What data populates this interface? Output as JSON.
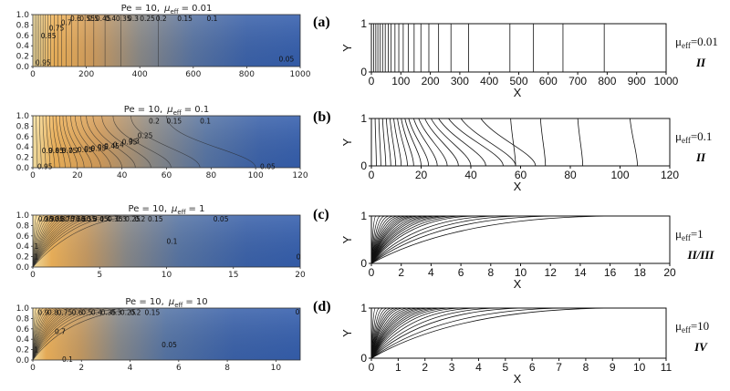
{
  "chart_data": [
    {
      "type": "heatmap",
      "panel": "left-1",
      "title_prefix": "Pe = 10,",
      "title_param": "μ",
      "title_param_sub": "eff",
      "title_value": "= 0.01",
      "xlim": [
        0,
        1000
      ],
      "ylim": [
        0,
        1
      ],
      "x_ticks": [
        0,
        200,
        400,
        600,
        800,
        1000
      ],
      "y_ticks": [
        "0.0",
        "0.2",
        "0.4",
        "0.6",
        "0.8",
        "1.0"
      ],
      "contour_levels": [
        0.95,
        0.9,
        0.85,
        0.8,
        0.75,
        0.7,
        0.65,
        0.6,
        0.55,
        0.5,
        0.45,
        0.4,
        0.35,
        0.3,
        0.25,
        0.2,
        0.15,
        0.1,
        0.05
      ],
      "contour_x_at_top": [
        8,
        15,
        22,
        30,
        38,
        47,
        57,
        67,
        80,
        93,
        108,
        125,
        145,
        168,
        195,
        228,
        270,
        330,
        470
      ],
      "contour_x_at_bottom": [
        8,
        15,
        22,
        30,
        38,
        47,
        57,
        67,
        80,
        93,
        108,
        125,
        145,
        168,
        195,
        228,
        270,
        330,
        470
      ],
      "contour_labels": [
        {
          "text": "0.95",
          "x": 10,
          "y": 0.08
        },
        {
          "text": "0.85",
          "x": 30,
          "y": 0.6
        },
        {
          "text": "0.75",
          "x": 60,
          "y": 0.75
        },
        {
          "text": "0.7",
          "x": 105,
          "y": 0.85
        },
        {
          "text": "0.6",
          "x": 140,
          "y": 0.93
        },
        {
          "text": "0.55",
          "x": 175,
          "y": 0.93
        },
        {
          "text": "0.5",
          "x": 205,
          "y": 0.93
        },
        {
          "text": "0.45",
          "x": 235,
          "y": 0.93
        },
        {
          "text": "0.4",
          "x": 270,
          "y": 0.93
        },
        {
          "text": "0.35",
          "x": 310,
          "y": 0.93
        },
        {
          "text": "0.3",
          "x": 355,
          "y": 0.93
        },
        {
          "text": "0.25",
          "x": 400,
          "y": 0.93
        },
        {
          "text": "0.2",
          "x": 460,
          "y": 0.93
        },
        {
          "text": "0.15",
          "x": 540,
          "y": 0.93
        },
        {
          "text": "0.1",
          "x": 650,
          "y": 0.93
        },
        {
          "text": "0.05",
          "x": 920,
          "y": 0.15
        }
      ]
    },
    {
      "type": "heatmap",
      "panel": "left-2",
      "title_prefix": "Pe = 10,",
      "title_param": "μ",
      "title_param_sub": "eff",
      "title_value": "= 0.1",
      "xlim": [
        0,
        120
      ],
      "ylim": [
        0,
        1
      ],
      "x_ticks": [
        0,
        20,
        40,
        60,
        80,
        100,
        120
      ],
      "y_ticks": [
        "0.0",
        "0.2",
        "0.4",
        "0.6",
        "0.8",
        "1.0"
      ],
      "contour_levels": [
        0.95,
        0.9,
        0.85,
        0.8,
        0.75,
        0.7,
        0.65,
        0.6,
        0.55,
        0.5,
        0.45,
        0.4,
        0.35,
        0.3,
        0.25,
        0.2,
        0.15,
        0.1,
        0.05
      ],
      "contour_x_at_top": [
        1.5,
        3,
        4.5,
        6,
        7.5,
        9,
        10.5,
        12,
        13.5,
        15,
        17,
        19,
        21.5,
        24,
        27,
        31,
        36,
        44,
        60
      ],
      "contour_x_at_bottom": [
        2,
        3.8,
        5.8,
        7.8,
        9.8,
        12,
        14.5,
        17,
        20,
        23,
        26.5,
        30.5,
        35,
        40,
        46,
        53,
        62,
        75,
        100
      ],
      "contour_labels": [
        {
          "text": "0.95",
          "x": 2,
          "y": 0.03
        },
        {
          "text": "0.9",
          "x": 4,
          "y": 0.33
        },
        {
          "text": "0.85",
          "x": 7,
          "y": 0.33
        },
        {
          "text": "0.8",
          "x": 10,
          "y": 0.33
        },
        {
          "text": "0.75",
          "x": 13,
          "y": 0.33
        },
        {
          "text": "0.7",
          "x": 16,
          "y": 0.33
        },
        {
          "text": "0.65",
          "x": 20,
          "y": 0.35
        },
        {
          "text": "0.6",
          "x": 23,
          "y": 0.37
        },
        {
          "text": "0.55",
          "x": 26,
          "y": 0.38
        },
        {
          "text": "0.5",
          "x": 29,
          "y": 0.4
        },
        {
          "text": "0.45",
          "x": 32,
          "y": 0.42
        },
        {
          "text": "0.4",
          "x": 36,
          "y": 0.45
        },
        {
          "text": "0.35",
          "x": 40,
          "y": 0.5
        },
        {
          "text": "0.3",
          "x": 43,
          "y": 0.52
        },
        {
          "text": "0.25",
          "x": 47,
          "y": 0.62
        },
        {
          "text": "0.2",
          "x": 52,
          "y": 0.9
        },
        {
          "text": "0.15",
          "x": 60,
          "y": 0.9
        },
        {
          "text": "0.1",
          "x": 75,
          "y": 0.9
        },
        {
          "text": "0.05",
          "x": 102,
          "y": 0.03
        }
      ]
    },
    {
      "type": "heatmap",
      "panel": "left-3",
      "title_prefix": "Pe = 10,",
      "title_param": "μ",
      "title_param_sub": "eff",
      "title_value": "= 1",
      "xlim": [
        0,
        20
      ],
      "ylim": [
        0,
        1
      ],
      "x_ticks": [
        0,
        5,
        10,
        15,
        20
      ],
      "y_ticks": [
        "0.0",
        "0.2",
        "0.4",
        "0.6",
        "0.8",
        "1.0"
      ],
      "contour_levels": [
        0.95,
        0.9,
        0.85,
        0.8,
        0.75,
        0.7,
        0.65,
        0.6,
        0.55,
        0.5,
        0.45,
        0.4,
        0.35,
        0.3,
        0.25,
        0.2,
        0.15,
        0.1,
        0.05
      ],
      "contour_x_at_top": [
        0.3,
        0.6,
        0.9,
        1.2,
        1.5,
        1.8,
        2.1,
        2.4,
        2.7,
        3.0,
        3.3,
        3.7,
        4.1,
        4.5,
        5.0,
        5.5,
        6.2,
        7.0,
        8.5
      ],
      "contour_x_at_bottom": [
        0.5,
        1.0,
        1.5,
        2.0,
        2.6,
        3.2,
        3.8,
        4.4,
        5.0,
        5.7,
        6.4,
        7.2,
        8.0,
        8.9,
        9.8,
        10.8,
        12.0,
        13.5,
        16.5
      ],
      "contour_labels": [
        {
          "text": "0.95",
          "x": 0.4,
          "y": 0.93
        },
        {
          "text": "0.9",
          "x": 0.8,
          "y": 0.93
        },
        {
          "text": "0.85",
          "x": 1.2,
          "y": 0.93
        },
        {
          "text": "0.8",
          "x": 1.6,
          "y": 0.93
        },
        {
          "text": "0.75",
          "x": 2.0,
          "y": 0.93
        },
        {
          "text": "0.7",
          "x": 2.4,
          "y": 0.93
        },
        {
          "text": "0.65",
          "x": 2.8,
          "y": 0.93
        },
        {
          "text": "0.6",
          "x": 3.2,
          "y": 0.93
        },
        {
          "text": "0.55",
          "x": 3.6,
          "y": 0.93
        },
        {
          "text": "0.5",
          "x": 4.0,
          "y": 0.93
        },
        {
          "text": "0.45",
          "x": 4.5,
          "y": 0.93
        },
        {
          "text": "0.4",
          "x": 5.0,
          "y": 0.93
        },
        {
          "text": "0.35",
          "x": 5.6,
          "y": 0.93
        },
        {
          "text": "0.3",
          "x": 6.2,
          "y": 0.93
        },
        {
          "text": "0.25",
          "x": 6.9,
          "y": 0.93
        },
        {
          "text": "0.2",
          "x": 7.6,
          "y": 0.93
        },
        {
          "text": "0.15",
          "x": 8.6,
          "y": 0.93
        },
        {
          "text": "0.1",
          "x": 10.0,
          "y": 0.5
        },
        {
          "text": "0.05",
          "x": 13.5,
          "y": 0.93
        },
        {
          "text": "1",
          "x": 0.1,
          "y": 0.4
        },
        {
          "text": "1",
          "x": 0.1,
          "y": 0.2
        },
        {
          "text": "0",
          "x": 19.7,
          "y": 0.2
        }
      ]
    },
    {
      "type": "heatmap",
      "panel": "left-4",
      "title_prefix": "Pe = 10,",
      "title_param": "μ",
      "title_param_sub": "eff",
      "title_value": "= 10",
      "xlim": [
        0,
        11
      ],
      "ylim": [
        0,
        1
      ],
      "x_ticks": [
        0,
        2,
        4,
        6,
        8,
        10
      ],
      "y_ticks": [
        "0.0",
        "0.2",
        "0.4",
        "0.6",
        "0.8",
        "1.0"
      ],
      "contour_levels": [
        0.95,
        0.9,
        0.85,
        0.8,
        0.75,
        0.7,
        0.65,
        0.6,
        0.55,
        0.5,
        0.45,
        0.4,
        0.35,
        0.3,
        0.25,
        0.2,
        0.15,
        0.1,
        0.05
      ],
      "contour_x_at_top": [
        0.15,
        0.3,
        0.45,
        0.6,
        0.75,
        0.9,
        1.05,
        1.2,
        1.4,
        1.6,
        1.8,
        2.0,
        2.2,
        2.45,
        2.7,
        3.0,
        3.4,
        4.0,
        5.0
      ],
      "contour_x_at_bottom": [
        0.2,
        0.4,
        0.6,
        0.8,
        1.0,
        1.25,
        1.5,
        1.75,
        2.0,
        2.3,
        2.6,
        2.95,
        3.3,
        3.7,
        4.1,
        4.6,
        5.3,
        6.2,
        7.6
      ],
      "contour_labels": [
        {
          "text": "0.9",
          "x": 0.2,
          "y": 0.92
        },
        {
          "text": "0.8",
          "x": 0.6,
          "y": 0.92
        },
        {
          "text": "0.75",
          "x": 1.0,
          "y": 0.92
        },
        {
          "text": "0.7",
          "x": 0.9,
          "y": 0.55
        },
        {
          "text": "0.6",
          "x": 1.6,
          "y": 0.92
        },
        {
          "text": "0.5",
          "x": 2.0,
          "y": 0.92
        },
        {
          "text": "0.4",
          "x": 2.4,
          "y": 0.92
        },
        {
          "text": "0.35",
          "x": 2.8,
          "y": 0.92
        },
        {
          "text": "0.3",
          "x": 3.2,
          "y": 0.92
        },
        {
          "text": "0.25",
          "x": 3.6,
          "y": 0.92
        },
        {
          "text": "0.2",
          "x": 4.0,
          "y": 0.92
        },
        {
          "text": "0.15",
          "x": 4.6,
          "y": 0.92
        },
        {
          "text": "0.05",
          "x": 5.3,
          "y": 0.3
        },
        {
          "text": "0.1",
          "x": 1.2,
          "y": 0.02
        },
        {
          "text": "1",
          "x": 0.05,
          "y": 0.2
        },
        {
          "text": "0",
          "x": 10.8,
          "y": 0.93
        }
      ]
    },
    {
      "type": "line",
      "panel": "a",
      "panel_label": "(a)",
      "xlabel": "X",
      "ylabel": "Y",
      "xlim": [
        0,
        1000
      ],
      "ylim": [
        0,
        1
      ],
      "x_ticks": [
        0,
        100,
        200,
        300,
        400,
        500,
        600,
        700,
        800,
        900,
        1000
      ],
      "y_ticks": [
        0,
        1
      ],
      "mu_label": "μ",
      "mu_sub": "eff",
      "mu_value": "=0.01",
      "regime": "II",
      "contour_x_at_top": [
        8,
        15,
        22,
        30,
        38,
        47,
        57,
        67,
        80,
        93,
        108,
        125,
        145,
        168,
        195,
        228,
        270,
        330,
        470,
        550,
        650,
        790
      ],
      "contour_x_at_bottom": [
        8,
        15,
        22,
        30,
        38,
        47,
        57,
        67,
        80,
        93,
        108,
        125,
        145,
        168,
        195,
        228,
        270,
        330,
        470,
        550,
        650,
        790
      ]
    },
    {
      "type": "line",
      "panel": "b",
      "panel_label": "(b)",
      "xlabel": "X",
      "ylabel": "Y",
      "xlim": [
        0,
        120
      ],
      "ylim": [
        0,
        1
      ],
      "x_ticks": [
        0,
        20,
        40,
        60,
        80,
        100,
        120
      ],
      "y_ticks": [
        0,
        1
      ],
      "mu_label": "μ",
      "mu_sub": "eff",
      "mu_value": "=0.1",
      "regime": "II",
      "contour_x_at_top": [
        1.5,
        3,
        4.5,
        6,
        7.5,
        9,
        10.5,
        12,
        13.5,
        15,
        17,
        19,
        21.5,
        24,
        27,
        31,
        36,
        44,
        56,
        68,
        83,
        104
      ],
      "contour_x_at_bottom": [
        2,
        3.8,
        5.8,
        7.8,
        9.8,
        12,
        14.5,
        17,
        20,
        23,
        26.5,
        30.5,
        35,
        40,
        46,
        53,
        58,
        66,
        58,
        70,
        85,
        107
      ]
    },
    {
      "type": "line",
      "panel": "c",
      "panel_label": "(c)",
      "xlabel": "X",
      "ylabel": "Y",
      "xlim": [
        0,
        20
      ],
      "ylim": [
        0,
        1
      ],
      "x_ticks": [
        0,
        2,
        4,
        6,
        8,
        10,
        12,
        14,
        16,
        18,
        20
      ],
      "y_ticks": [
        0,
        1
      ],
      "mu_label": "μ",
      "mu_sub": "eff",
      "mu_value": "=1",
      "regime": "II/III",
      "contour_x_at_top": [
        0.3,
        0.6,
        0.9,
        1.2,
        1.5,
        1.8,
        2.1,
        2.4,
        2.7,
        3.0,
        3.3,
        3.7,
        4.1,
        4.5,
        5.0,
        5.5,
        6.2,
        7.0,
        8.5,
        10.2,
        12.4,
        16.2
      ],
      "contour_x_at_bottom": [
        0.3,
        0.6,
        0.9,
        1.2,
        1.5,
        1.8,
        2.1,
        2.4,
        2.7,
        3.0,
        3.3,
        3.7,
        4.1,
        4.5,
        5.0,
        5.5,
        6.2,
        7.0,
        8.5,
        10.2,
        12.4,
        16.2
      ]
    },
    {
      "type": "line",
      "panel": "d",
      "panel_label": "(d)",
      "xlabel": "X",
      "ylabel": "Y",
      "xlim": [
        0,
        11
      ],
      "ylim": [
        0,
        1
      ],
      "x_ticks": [
        0,
        1,
        2,
        3,
        4,
        5,
        6,
        7,
        8,
        9,
        10,
        11
      ],
      "y_ticks": [
        0,
        1
      ],
      "mu_label": "μ",
      "mu_sub": "eff",
      "mu_value": "=10",
      "regime": "IV",
      "contour_x_at_top": [
        0.15,
        0.3,
        0.45,
        0.6,
        0.75,
        0.9,
        1.05,
        1.2,
        1.4,
        1.6,
        1.8,
        2.0,
        2.2,
        2.45,
        2.7,
        3.0,
        3.4,
        4.0,
        4.8,
        5.8,
        7.3,
        9.0
      ],
      "contour_x_at_bottom": [
        0.15,
        0.3,
        0.45,
        0.6,
        0.75,
        0.9,
        1.05,
        1.2,
        1.4,
        1.6,
        1.8,
        2.0,
        2.2,
        2.45,
        2.7,
        3.0,
        3.4,
        4.0,
        4.8,
        5.8,
        7.3,
        9.0
      ]
    }
  ]
}
